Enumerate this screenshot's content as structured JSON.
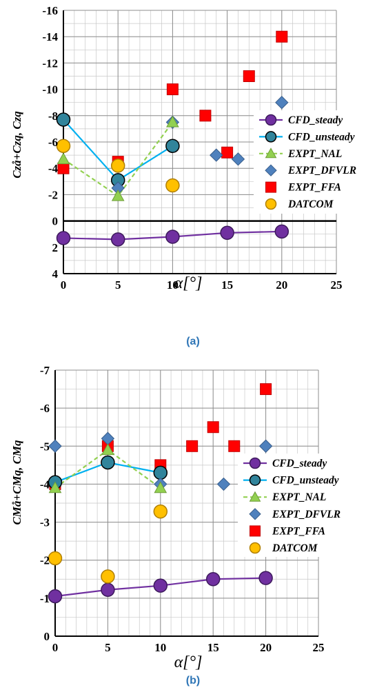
{
  "colors": {
    "cfd_steady": "#7030a0",
    "cfd_unsteady": "#00b0f0",
    "cfd_unsteady_marker": "#31849b",
    "expt_nal": "#92d050",
    "expt_dfvlr": "#4f81bd",
    "expt_ffa": "#ff0000",
    "datcom": "#ffc000",
    "caption": "#2e75b6"
  },
  "chart_data": [
    {
      "type": "scatter",
      "caption": "(a)",
      "ylabel": "Czå+Czq,  Czq",
      "xlabel": "α[°]",
      "xlim": [
        0,
        25
      ],
      "ylim": [
        4,
        -16
      ],
      "x_ticks": [
        "0",
        "5",
        "10",
        "15",
        "20",
        "25"
      ],
      "y_ticks": [
        "-16",
        "-14",
        "-12",
        "-10",
        "-8",
        "-6",
        "-4",
        "-2",
        "0",
        "2",
        "4"
      ],
      "y_reversed": true,
      "grid": true,
      "legend_position": "right",
      "series": [
        {
          "name": "CFD_steady",
          "style": "line-circle",
          "x": [
            0,
            5,
            10,
            15,
            20
          ],
          "y": [
            1.3,
            1.4,
            1.2,
            0.9,
            0.8
          ]
        },
        {
          "name": "CFD_unsteady",
          "style": "line-circle",
          "x": [
            0,
            5,
            10
          ],
          "y": [
            -7.7,
            -3.1,
            -5.7
          ]
        },
        {
          "name": "EXPT_NAL",
          "style": "dash-triangle",
          "x": [
            0,
            5,
            10
          ],
          "y": [
            -4.7,
            -1.9,
            -7.5
          ]
        },
        {
          "name": "EXPT_DFVLR",
          "style": "diamond",
          "x": [
            5,
            10,
            14,
            16,
            20
          ],
          "y": [
            -2.5,
            -7.5,
            -5.0,
            -4.7,
            -9.0
          ]
        },
        {
          "name": "EXPT_FFA",
          "style": "square",
          "x": [
            0,
            5,
            10,
            13,
            15,
            17,
            20
          ],
          "y": [
            -4.0,
            -4.5,
            -10.0,
            -8.0,
            -5.2,
            -11.0,
            -14.0
          ]
        },
        {
          "name": "DATCOM",
          "style": "circle",
          "x": [
            0,
            5,
            10
          ],
          "y": [
            -5.7,
            -4.2,
            -2.7
          ]
        }
      ]
    },
    {
      "type": "scatter",
      "caption": "(b)",
      "ylabel": "CMå+CMq,  CMq",
      "xlabel": "α[°]",
      "xlim": [
        0,
        25
      ],
      "ylim": [
        0,
        -7
      ],
      "x_ticks": [
        "0",
        "5",
        "10",
        "15",
        "20",
        "25"
      ],
      "y_ticks": [
        "-7",
        "-6",
        "-5",
        "-4",
        "-3",
        "-2",
        "-1",
        "0"
      ],
      "y_reversed": true,
      "grid": true,
      "legend_position": "right",
      "series": [
        {
          "name": "CFD_steady",
          "style": "line-circle",
          "x": [
            0,
            5,
            10,
            15,
            20
          ],
          "y": [
            -1.05,
            -1.22,
            -1.33,
            -1.5,
            -1.53
          ]
        },
        {
          "name": "CFD_unsteady",
          "style": "line-circle",
          "x": [
            0,
            5,
            10
          ],
          "y": [
            -4.05,
            -4.57,
            -4.3
          ]
        },
        {
          "name": "EXPT_NAL",
          "style": "dash-triangle",
          "x": [
            0,
            5,
            10
          ],
          "y": [
            -3.9,
            -4.9,
            -3.9
          ]
        },
        {
          "name": "EXPT_DFVLR",
          "style": "diamond",
          "x": [
            0,
            5,
            10,
            16,
            20
          ],
          "y": [
            -5.0,
            -5.2,
            -4.0,
            -4.0,
            -5.0
          ]
        },
        {
          "name": "EXPT_FFA",
          "style": "square",
          "x": [
            0,
            5,
            10,
            13,
            15,
            17,
            20
          ],
          "y": [
            -4.0,
            -5.0,
            -4.5,
            -5.0,
            -5.5,
            -5.0,
            -6.5
          ]
        },
        {
          "name": "DATCOM",
          "style": "circle",
          "x": [
            0,
            5,
            10
          ],
          "y": [
            -2.05,
            -1.57,
            -3.28
          ]
        }
      ]
    }
  ]
}
